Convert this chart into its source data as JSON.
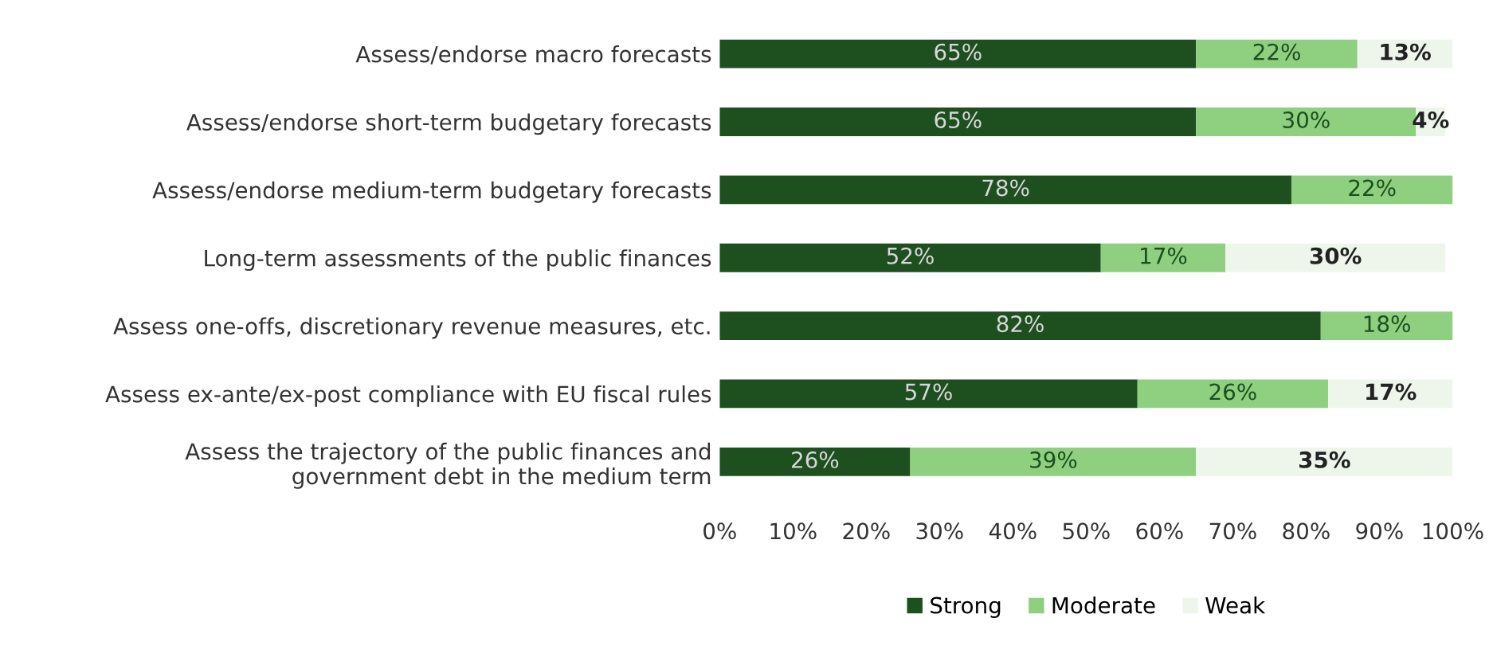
{
  "chart_data": {
    "type": "bar",
    "orientation": "horizontal",
    "stacked": true,
    "categories": [
      "Assess/endorse macro forecasts",
      "Assess/endorse short-term budgetary forecasts",
      "Assess/endorse medium-term budgetary forecasts",
      "Long-term assessments of the public finances",
      "Assess one-offs, discretionary revenue measures, etc.",
      "Assess ex-ante/ex-post compliance with EU fiscal rules",
      "Assess the trajectory of the public finances and\ngovernment debt in the medium term"
    ],
    "series": [
      {
        "name": "Strong",
        "color": "#1d4f1f",
        "values": [
          65,
          65,
          78,
          52,
          82,
          57,
          26
        ],
        "value_labels": [
          "65%",
          "65%",
          "78%",
          "52%",
          "82%",
          "57%",
          "26%"
        ]
      },
      {
        "name": "Moderate",
        "color": "#8fcf80",
        "values": [
          22,
          30,
          22,
          17,
          18,
          26,
          39
        ],
        "value_labels": [
          "22%",
          "30%",
          "22%",
          "17%",
          "18%",
          "26%",
          "39%"
        ]
      },
      {
        "name": "Weak",
        "color": "#eef6ec",
        "values": [
          13,
          4,
          null,
          30,
          null,
          17,
          35
        ],
        "value_labels": [
          "13%",
          "4%",
          null,
          "30%",
          null,
          "17%",
          "35%"
        ]
      }
    ],
    "xlim": [
      0,
      100
    ],
    "xticks": [
      {
        "value": 0,
        "label": "0%"
      },
      {
        "value": 10,
        "label": "10%"
      },
      {
        "value": 20,
        "label": "20%"
      },
      {
        "value": 30,
        "label": "30%"
      },
      {
        "value": 40,
        "label": "40%"
      },
      {
        "value": 50,
        "label": "50%"
      },
      {
        "value": 60,
        "label": "60%"
      },
      {
        "value": 70,
        "label": "70%"
      },
      {
        "value": 80,
        "label": "80%"
      },
      {
        "value": 90,
        "label": "90%"
      },
      {
        "value": 100,
        "label": "100%"
      }
    ],
    "grid": false,
    "legend": "bottom"
  }
}
